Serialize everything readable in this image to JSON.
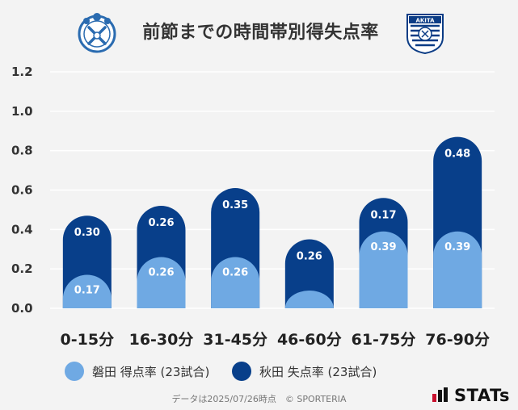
{
  "title": "前節までの時間帯別得失点率",
  "logos": {
    "left_team": "jubilo-iwata-emblem",
    "right_team": "akita-blaublitz-emblem",
    "right_team_text_top": "AKITA",
    "right_team_text_band": "BLAU BLITZ"
  },
  "colors": {
    "light_series": "#6fa9e3",
    "dark_series": "#083f8a",
    "background": "#f3f3f3",
    "grid": "#ffffff"
  },
  "chart_data": {
    "type": "bar",
    "stacked": true,
    "categories": [
      "0-15分",
      "16-30分",
      "31-45分",
      "46-60分",
      "61-75分",
      "76-90分"
    ],
    "series": [
      {
        "name": "磐田 得点率 (23試合)",
        "values": [
          0.17,
          0.26,
          0.26,
          0.09,
          0.39,
          0.39
        ],
        "labels": [
          "0.17",
          "0.26",
          "0.26",
          "",
          "0.39",
          "0.39"
        ]
      },
      {
        "name": "秋田 失点率 (23試合)",
        "values": [
          0.3,
          0.26,
          0.35,
          0.26,
          0.17,
          0.48
        ],
        "labels": [
          "0.30",
          "0.26",
          "0.35",
          "0.26",
          "0.17",
          "0.48"
        ]
      }
    ],
    "ylim": [
      0,
      1.2
    ],
    "yticks": [
      "0.0",
      "0.2",
      "0.4",
      "0.6",
      "0.8",
      "1.0",
      "1.2"
    ],
    "grid": true,
    "legend_position": "bottom"
  },
  "legend": {
    "home_label": "磐田 得点率 (23試合)",
    "away_label": "秋田 失点率 (23試合)"
  },
  "footer": "データは2025/07/26時点　© SPORTERIA",
  "brand": "STATs"
}
